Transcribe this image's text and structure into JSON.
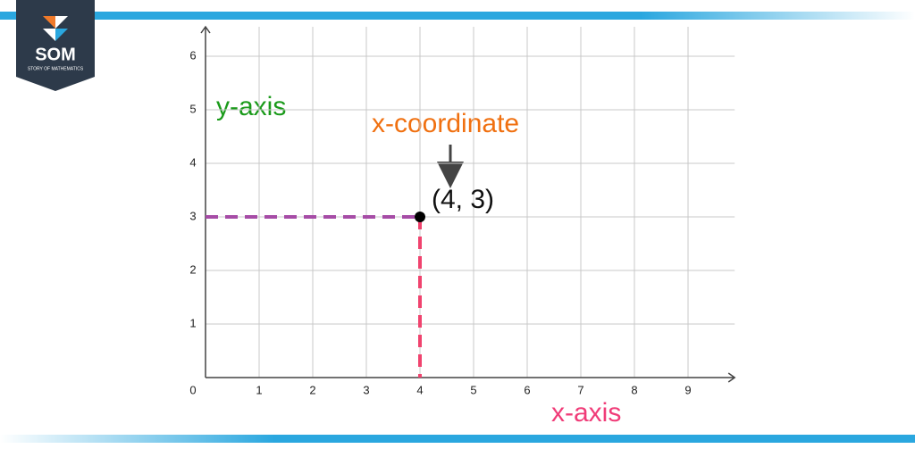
{
  "brand": {
    "name": "SOM",
    "tagline": "STORY OF MATHEMATICS"
  },
  "chart_data": {
    "type": "scatter",
    "series": [
      {
        "name": "(4, 3)",
        "color": "#000000",
        "x": [
          4
        ],
        "values": [
          3
        ]
      }
    ],
    "xlim": [
      0,
      9.87
    ],
    "ylim": [
      0,
      6.55
    ],
    "xticks": [
      0,
      1,
      2,
      3,
      4,
      5,
      6,
      7,
      8,
      9
    ],
    "yticks": [
      1,
      2,
      3,
      4,
      5,
      6
    ],
    "grid": true,
    "annotations": {
      "y_axis": "y-axis",
      "x_coordinate": "x-coordinate",
      "x_axis": "x-axis"
    },
    "colors": {
      "grid": "#c8c8c8",
      "horizontal_guide": "#a64ca6",
      "vertical_guide": "#f0436e",
      "y_axis_label": "#1a9a1a",
      "x_coordinate_label": "#f07010",
      "x_axis_label": "#f03c78"
    }
  }
}
